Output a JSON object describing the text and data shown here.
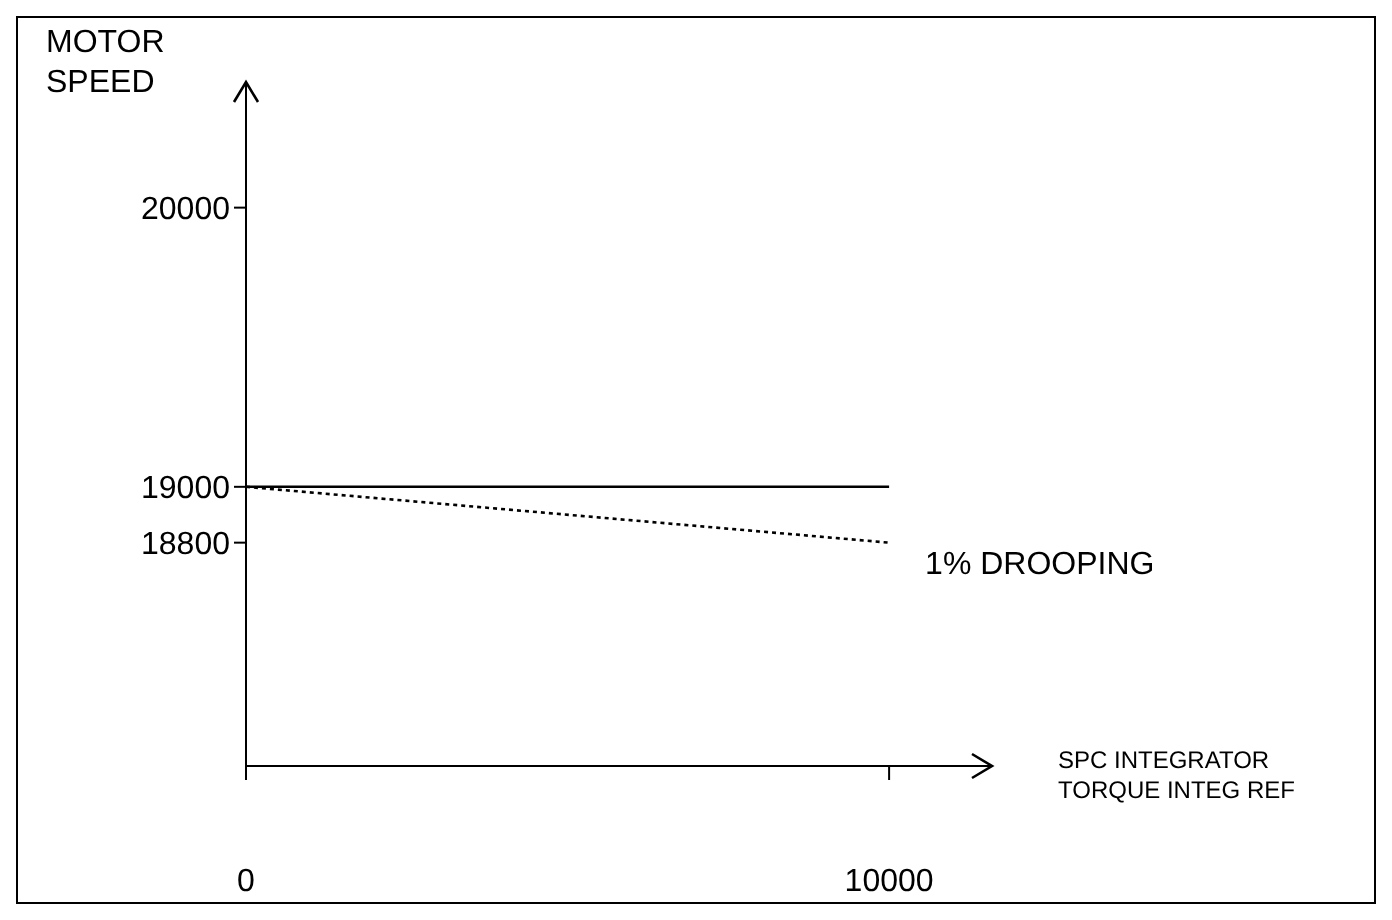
{
  "chart_data": {
    "type": "line",
    "xlabel": "SPC INTEGRATOR\nTORQUE INTEG REF",
    "ylabel": "MOTOR\nSPEED",
    "x": [
      0,
      10000
    ],
    "series": [
      {
        "color": "#000000",
        "values": [
          19000,
          19000
        ],
        "line_style": "solid"
      },
      {
        "color": "#000000",
        "values": [
          19000,
          18800
        ],
        "line_style": "dotted"
      }
    ],
    "xlim": [
      0,
      11600
    ],
    "xticks": [
      0,
      10000
    ],
    "ylim": [
      18000,
      20450
    ],
    "yticks": [
      18800,
      19000,
      20000
    ],
    "annotations": [
      {
        "text": "1% DROOPING",
        "x": 10000,
        "y": 18800
      }
    ],
    "grid": false,
    "legend": false,
    "marker": "none"
  }
}
